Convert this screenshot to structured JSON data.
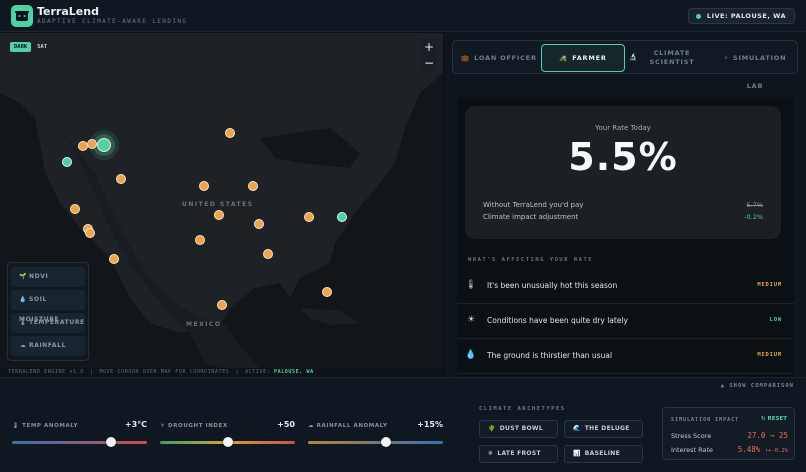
{
  "header": {
    "title": "TerraLend",
    "subtitle": "ADAPTIVE CLIMATE-AWARE LENDING",
    "live_badge": "LIVE: PALOUSE, WA",
    "logo_icon": "farmer-face-icon"
  },
  "map": {
    "toggles": [
      {
        "label": "DARK",
        "active": true
      },
      {
        "label": "SAT",
        "active": false
      }
    ],
    "zoom_in": "+",
    "zoom_out": "−",
    "labels": {
      "country_us": "UNITED STATES",
      "country_mx": "MEXICO"
    },
    "layers": [
      {
        "icon": "leaf-icon",
        "glyph": "🌱",
        "label": "NDVI"
      },
      {
        "icon": "droplet-icon",
        "glyph": "💧",
        "label": "SOIL MOISTURE"
      },
      {
        "icon": "thermometer-icon",
        "glyph": "🌡",
        "label": "TEMPERATURE"
      },
      {
        "icon": "cloud-rain-icon",
        "glyph": "☁",
        "label": "RAINFALL"
      }
    ],
    "pin_colors": {
      "orange": "#f0a348",
      "green": "#4fd1a5"
    }
  },
  "status_bar": {
    "engine": "TERRALEND ENGINE v1.0",
    "hint": "MOVE CURSOR OVER MAP FOR COORDINATES",
    "active_label": "ACTIVE:",
    "active_value": "PALOUSE, WA"
  },
  "tabs": [
    {
      "icon": "briefcase-icon",
      "glyph": "💼",
      "label": "LOAN OFFICER",
      "active": false
    },
    {
      "icon": "tractor-icon",
      "glyph": "🚜",
      "label": "FARMER",
      "active": true
    },
    {
      "icon": "microscope-icon",
      "glyph": "🔬",
      "label_1": "CLIMATE",
      "label_2": "SCIENTIST",
      "active": false
    },
    {
      "icon": "lightning-icon",
      "glyph": "⚡",
      "label": "SIMULATION LAB",
      "active": false
    }
  ],
  "rate_card": {
    "label": "Your Rate Today",
    "value": "5.5%",
    "without_label": "Without TerraLend you'd pay",
    "without_value": "5.7%",
    "adjust_label": "Climate impact adjustment",
    "adjust_value": "-0.2%"
  },
  "factors": {
    "title": "WHAT'S AFFECTING YOUR RATE",
    "items": [
      {
        "icon": "thermometer-icon",
        "glyph": "🌡",
        "text": "It's been unusually hot this season",
        "level": "MEDIUM"
      },
      {
        "icon": "sun-icon",
        "glyph": "☀",
        "text": "Conditions have been quite dry lately",
        "level": "LOW"
      },
      {
        "icon": "droplet-icon",
        "glyph": "💧",
        "text": "The ground is thirstier than usual",
        "level": "MEDIUM"
      }
    ]
  },
  "bottom": {
    "show_comparison": "▲ SHOW COMPARISON",
    "sliders": [
      {
        "icon": "thermometer-icon",
        "glyph": "🌡",
        "label": "TEMP ANOMALY",
        "value": "+3°C",
        "position": 0.73
      },
      {
        "icon": "sun-icon",
        "glyph": "☀",
        "label": "DROUGHT INDEX",
        "value": "+50",
        "position": 0.5
      },
      {
        "icon": "cloud-rain-icon",
        "glyph": "☁",
        "label": "RAINFALL ANOMALY",
        "value": "+15%",
        "position": 0.58
      }
    ],
    "archetypes_title": "CLIMATE ARCHETYPES",
    "archetypes": [
      {
        "icon": "cactus-icon",
        "glyph": "🌵",
        "label": "DUST BOWL"
      },
      {
        "icon": "flood-icon",
        "glyph": "🌊",
        "label": "THE DELUGE"
      },
      {
        "icon": "snowflake-icon",
        "glyph": "❄",
        "label": "LATE FROST"
      },
      {
        "icon": "chart-icon",
        "glyph": "📊",
        "label": "BASELINE"
      }
    ],
    "simulation": {
      "title": "SIMULATION IMPACT",
      "reset": "↻ RESET",
      "stress_label": "Stress Score",
      "stress_value": "27.0 → 25",
      "interest_label": "Interest Rate",
      "interest_value": "5.48%",
      "interest_delta": "↑+-0.2%"
    }
  }
}
